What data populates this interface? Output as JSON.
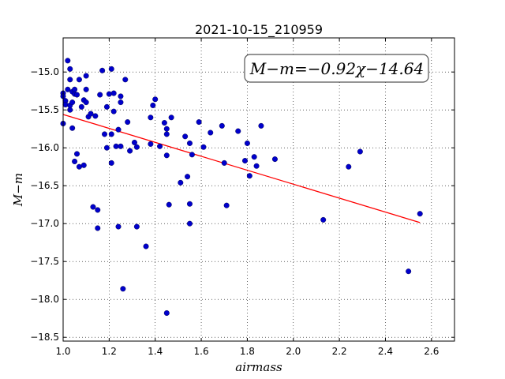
{
  "chart_data": {
    "type": "scatter",
    "title": "2021-10-15_210959",
    "xlabel": "airmass",
    "ylabel": "M−m",
    "xlim": [
      1.0,
      2.7
    ],
    "ylim": [
      -18.55,
      -14.55
    ],
    "y_inverted": true,
    "grid": true,
    "x_ticks": [
      1.0,
      1.2,
      1.4,
      1.6,
      1.8,
      2.0,
      2.2,
      2.4,
      2.6
    ],
    "x_tick_labels": [
      "1.0",
      "1.2",
      "1.4",
      "1.6",
      "1.8",
      "2.0",
      "2.2",
      "2.4",
      "2.6"
    ],
    "y_ticks": [
      -15.0,
      -15.5,
      -16.0,
      -16.5,
      -17.0,
      -17.5,
      -18.0,
      -18.5
    ],
    "y_tick_labels": [
      "−15.0",
      "−15.5",
      "−16.0",
      "−16.5",
      "−17.0",
      "−17.5",
      "−18.0",
      "−18.5"
    ],
    "annotation": "M−m=−0.92χ−14.64",
    "fit": {
      "slope": -0.92,
      "intercept": -14.64,
      "x_range": [
        1.0,
        2.55
      ],
      "color": "#ff0000"
    },
    "point_color": "#0000cc",
    "points": [
      [
        1.0,
        -15.28
      ],
      [
        1.0,
        -15.32
      ],
      [
        1.0,
        -15.68
      ],
      [
        1.01,
        -15.38
      ],
      [
        1.01,
        -15.43
      ],
      [
        1.02,
        -14.85
      ],
      [
        1.02,
        -15.23
      ],
      [
        1.03,
        -15.1
      ],
      [
        1.03,
        -14.96
      ],
      [
        1.03,
        -15.5
      ],
      [
        1.03,
        -15.44
      ],
      [
        1.04,
        -15.4
      ],
      [
        1.04,
        -15.74
      ],
      [
        1.04,
        -15.26
      ],
      [
        1.05,
        -15.29
      ],
      [
        1.05,
        -15.23
      ],
      [
        1.05,
        -16.18
      ],
      [
        1.06,
        -15.3
      ],
      [
        1.06,
        -16.08
      ],
      [
        1.07,
        -15.1
      ],
      [
        1.07,
        -16.25
      ],
      [
        1.08,
        -15.46
      ],
      [
        1.09,
        -16.23
      ],
      [
        1.09,
        -15.37
      ],
      [
        1.1,
        -15.05
      ],
      [
        1.1,
        -15.23
      ],
      [
        1.1,
        -15.4
      ],
      [
        1.11,
        -15.59
      ],
      [
        1.12,
        -15.55
      ],
      [
        1.13,
        -16.78
      ],
      [
        1.14,
        -15.58
      ],
      [
        1.15,
        -16.82
      ],
      [
        1.15,
        -17.06
      ],
      [
        1.16,
        -15.3
      ],
      [
        1.17,
        -14.98
      ],
      [
        1.18,
        -15.82
      ],
      [
        1.19,
        -15.46
      ],
      [
        1.19,
        -16.0
      ],
      [
        1.2,
        -15.29
      ],
      [
        1.21,
        -16.2
      ],
      [
        1.21,
        -14.96
      ],
      [
        1.21,
        -15.82
      ],
      [
        1.22,
        -15.28
      ],
      [
        1.22,
        -15.52
      ],
      [
        1.23,
        -15.98
      ],
      [
        1.24,
        -15.76
      ],
      [
        1.24,
        -17.04
      ],
      [
        1.25,
        -15.32
      ],
      [
        1.25,
        -15.4
      ],
      [
        1.25,
        -15.98
      ],
      [
        1.26,
        -17.86
      ],
      [
        1.27,
        -15.1
      ],
      [
        1.28,
        -15.66
      ],
      [
        1.29,
        -16.04
      ],
      [
        1.31,
        -15.93
      ],
      [
        1.32,
        -15.99
      ],
      [
        1.32,
        -17.04
      ],
      [
        1.36,
        -17.3
      ],
      [
        1.38,
        -15.95
      ],
      [
        1.38,
        -15.6
      ],
      [
        1.39,
        -15.44
      ],
      [
        1.4,
        -15.36
      ],
      [
        1.42,
        -15.98
      ],
      [
        1.44,
        -15.67
      ],
      [
        1.45,
        -15.75
      ],
      [
        1.45,
        -15.82
      ],
      [
        1.45,
        -16.1
      ],
      [
        1.45,
        -18.18
      ],
      [
        1.46,
        -16.75
      ],
      [
        1.47,
        -15.6
      ],
      [
        1.51,
        -16.46
      ],
      [
        1.53,
        -15.85
      ],
      [
        1.54,
        -16.38
      ],
      [
        1.55,
        -15.94
      ],
      [
        1.55,
        -16.74
      ],
      [
        1.55,
        -17.0
      ],
      [
        1.56,
        -16.09
      ],
      [
        1.59,
        -15.66
      ],
      [
        1.61,
        -15.99
      ],
      [
        1.64,
        -15.8
      ],
      [
        1.69,
        -15.71
      ],
      [
        1.7,
        -16.2
      ],
      [
        1.71,
        -16.76
      ],
      [
        1.76,
        -15.78
      ],
      [
        1.79,
        -16.17
      ],
      [
        1.8,
        -15.94
      ],
      [
        1.81,
        -16.37
      ],
      [
        1.83,
        -16.12
      ],
      [
        1.84,
        -16.24
      ],
      [
        1.86,
        -15.71
      ],
      [
        1.92,
        -16.15
      ],
      [
        2.13,
        -16.95
      ],
      [
        2.24,
        -16.25
      ],
      [
        2.29,
        -16.05
      ],
      [
        2.5,
        -17.63
      ],
      [
        2.55,
        -16.87
      ]
    ]
  }
}
